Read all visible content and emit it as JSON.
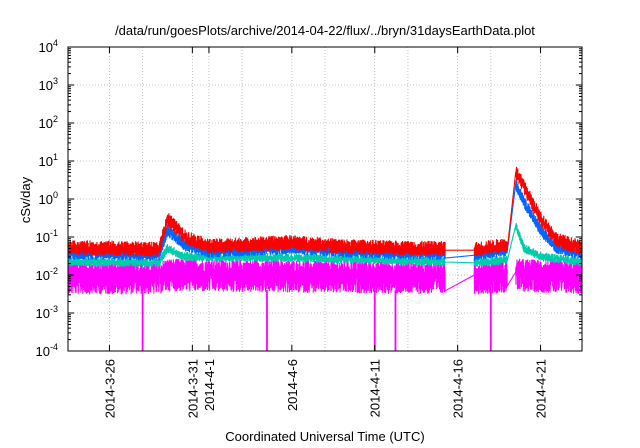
{
  "chart_data": {
    "type": "line",
    "title": "/data/run/goesPlots/archive/2014-04-22/flux/../bryn/31daysEarthData.plot",
    "xlabel": "Coordinated Universal Time (UTC)",
    "ylabel": "cSv/day",
    "yscale": "log",
    "ylim": [
      0.0001,
      10000
    ],
    "xlim": [
      "2014-03-23T12:00",
      "2014-04-23T12:00"
    ],
    "grid": true,
    "legend": "none",
    "y_ticks": [
      {
        "value": 0.0001,
        "mant": "10",
        "exp": "-4"
      },
      {
        "value": 0.001,
        "mant": "10",
        "exp": "-3"
      },
      {
        "value": 0.01,
        "mant": "10",
        "exp": "-2"
      },
      {
        "value": 0.1,
        "mant": "10",
        "exp": "-1"
      },
      {
        "value": 1,
        "mant": "10",
        "exp": "0"
      },
      {
        "value": 10,
        "mant": "10",
        "exp": "1"
      },
      {
        "value": 100,
        "mant": "10",
        "exp": "2"
      },
      {
        "value": 1000,
        "mant": "10",
        "exp": "3"
      },
      {
        "value": 10000,
        "mant": "10",
        "exp": "4"
      }
    ],
    "x_ticks": [
      {
        "date": "2014-03-26",
        "label": "2014-3-26"
      },
      {
        "date": "2014-03-31",
        "label": "2014-3-31"
      },
      {
        "date": "2014-04-01",
        "label": "2014-4-1"
      },
      {
        "date": "2014-04-06",
        "label": "2014-4-6"
      },
      {
        "date": "2014-04-11",
        "label": "2014-4-11"
      },
      {
        "date": "2014-04-16",
        "label": "2014-4-16"
      },
      {
        "date": "2014-04-21",
        "label": "2014-4-21"
      }
    ],
    "x_gridlines": [
      "2014-03-26",
      "2014-03-28",
      "2014-03-31",
      "2014-04-01",
      "2014-04-03",
      "2014-04-06",
      "2014-04-08",
      "2014-04-11",
      "2014-04-13",
      "2014-04-16",
      "2014-04-18",
      "2014-04-21"
    ],
    "gaps": [
      [
        "2014-04-15T06:00",
        "2014-04-17T00:00"
      ],
      [
        "2014-04-19T00:00",
        "2014-04-19T12:00"
      ]
    ],
    "series": [
      {
        "color": "#ff0000",
        "points": [
          [
            "2014-03-23T12:00",
            0.05
          ],
          [
            "2014-03-26T00:00",
            0.05
          ],
          [
            "2014-03-29T00:00",
            0.045
          ],
          [
            "2014-03-29T12:00",
            0.3
          ],
          [
            "2014-03-30T12:00",
            0.1
          ],
          [
            "2014-04-01T00:00",
            0.055
          ],
          [
            "2014-04-06T00:00",
            0.07
          ],
          [
            "2014-04-09T00:00",
            0.055
          ],
          [
            "2014-04-12T00:00",
            0.05
          ],
          [
            "2014-04-15T06:00",
            0.048
          ],
          [
            "2014-04-17T00:00",
            0.045
          ],
          [
            "2014-04-19T00:00",
            0.06
          ],
          [
            "2014-04-19T12:00",
            5
          ],
          [
            "2014-04-20T00:00",
            2
          ],
          [
            "2014-04-21T00:00",
            0.3
          ],
          [
            "2014-04-22T00:00",
            0.08
          ],
          [
            "2014-04-23T12:00",
            0.05
          ]
        ]
      },
      {
        "color": "#0066ff",
        "points": [
          [
            "2014-03-23T12:00",
            0.035
          ],
          [
            "2014-03-26T00:00",
            0.036
          ],
          [
            "2014-03-29T00:00",
            0.033
          ],
          [
            "2014-03-29T12:00",
            0.15
          ],
          [
            "2014-03-30T12:00",
            0.06
          ],
          [
            "2014-04-01T00:00",
            0.04
          ],
          [
            "2014-04-06T00:00",
            0.05
          ],
          [
            "2014-04-09T00:00",
            0.04
          ],
          [
            "2014-04-12T00:00",
            0.037
          ],
          [
            "2014-04-15T06:00",
            0.035
          ],
          [
            "2014-04-17T00:00",
            0.033
          ],
          [
            "2014-04-19T00:00",
            0.045
          ],
          [
            "2014-04-19T12:00",
            2.5
          ],
          [
            "2014-04-20T00:00",
            0.8
          ],
          [
            "2014-04-21T00:00",
            0.15
          ],
          [
            "2014-04-22T00:00",
            0.05
          ],
          [
            "2014-04-23T12:00",
            0.035
          ]
        ]
      },
      {
        "color": "#00ccaa",
        "points": [
          [
            "2014-03-23T12:00",
            0.022
          ],
          [
            "2014-03-29T00:00",
            0.021
          ],
          [
            "2014-03-29T12:00",
            0.05
          ],
          [
            "2014-03-30T12:00",
            0.03
          ],
          [
            "2014-04-06T00:00",
            0.028
          ],
          [
            "2014-04-15T06:00",
            0.022
          ],
          [
            "2014-04-17T00:00",
            0.021
          ],
          [
            "2014-04-19T00:00",
            0.025
          ],
          [
            "2014-04-19T12:00",
            0.2
          ],
          [
            "2014-04-20T00:00",
            0.05
          ],
          [
            "2014-04-21T00:00",
            0.03
          ],
          [
            "2014-04-23T12:00",
            0.022
          ]
        ]
      },
      {
        "color": "#ff00ff",
        "points": [
          [
            "2014-03-23T12:00",
            0.01
          ],
          [
            "2014-03-29T00:00",
            0.01
          ],
          [
            "2014-03-29T12:00",
            0.012
          ],
          [
            "2014-04-06T00:00",
            0.011
          ],
          [
            "2014-04-15T06:00",
            0.01
          ],
          [
            "2014-04-17T00:00",
            0.01
          ],
          [
            "2014-04-19T00:00",
            0.011
          ],
          [
            "2014-04-19T12:00",
            0.012
          ],
          [
            "2014-04-23T12:00",
            0.01
          ]
        ]
      }
    ],
    "dips": [
      "2014-03-28T00:00",
      "2014-04-04T12:00",
      "2014-04-11T00:00",
      "2014-04-12T06:00",
      "2014-04-18T00:00"
    ]
  }
}
